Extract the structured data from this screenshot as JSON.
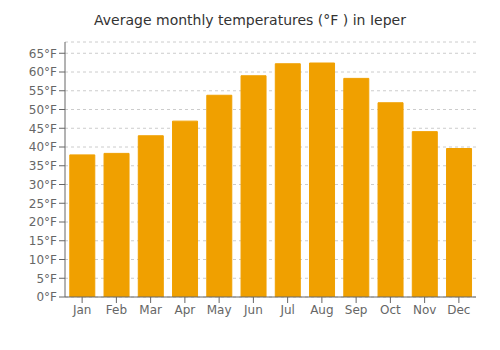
{
  "chart_data": {
    "type": "bar",
    "title": "Average monthly temperatures (°F ) in Ieper",
    "categories": [
      "Jan",
      "Feb",
      "Mar",
      "Apr",
      "May",
      "Jun",
      "Jul",
      "Aug",
      "Sep",
      "Oct",
      "Nov",
      "Dec"
    ],
    "values": [
      37.9,
      38.3,
      43.0,
      46.9,
      53.8,
      59.0,
      62.2,
      62.4,
      58.3,
      51.8,
      44.1,
      39.6
    ],
    "color": "#F0A000",
    "ylim": [
      0,
      68
    ],
    "yticks": [
      {
        "value": 0,
        "label": "0°F"
      },
      {
        "value": 5,
        "label": "5°F"
      },
      {
        "value": 10,
        "label": "10°F"
      },
      {
        "value": 15,
        "label": "15°F"
      },
      {
        "value": 20,
        "label": "20°F"
      },
      {
        "value": 25,
        "label": "25°F"
      },
      {
        "value": 30,
        "label": "30°F"
      },
      {
        "value": 35,
        "label": "35°F"
      },
      {
        "value": 40,
        "label": "40°F"
      },
      {
        "value": 45,
        "label": "45°F"
      },
      {
        "value": 50,
        "label": "50°F"
      },
      {
        "value": 55,
        "label": "55°F"
      },
      {
        "value": 60,
        "label": "60°F"
      },
      {
        "value": 65,
        "label": "65°F"
      }
    ],
    "grid": true
  }
}
